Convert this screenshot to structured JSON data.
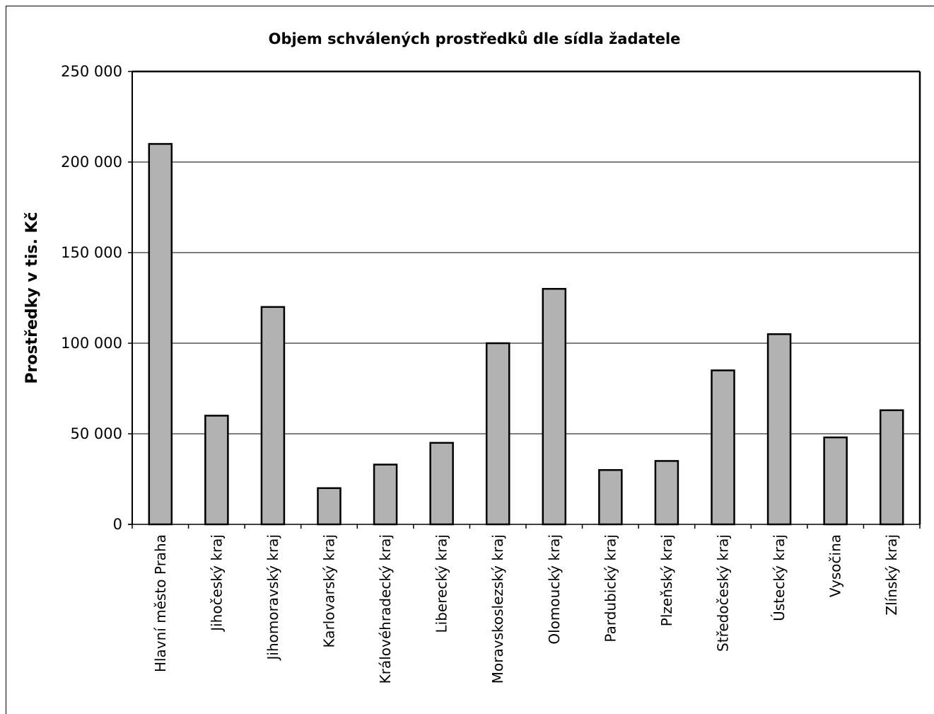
{
  "chart_data": {
    "type": "bar",
    "title": "Objem schválených prostředků dle sídla žadatele",
    "xlabel": "",
    "ylabel": "Prostředky v tis. Kč",
    "ylim": [
      0,
      250000
    ],
    "yticks": [
      0,
      50000,
      100000,
      150000,
      200000,
      250000
    ],
    "ytick_labels": [
      "0",
      "50 000",
      "100 000",
      "150 000",
      "200 000",
      "250 000"
    ],
    "grid": true,
    "legend": "none",
    "bar_color": "#b2b2b2",
    "categories": [
      "Hlavní město Praha",
      "Jihočeský kraj",
      "Jihomoravský kraj",
      "Karlovarský kraj",
      "Královéhradecký kraj",
      "Liberecký kraj",
      "Moravskoslezský kraj",
      "Olomoucký kraj",
      "Pardubický kraj",
      "Plzeňský kraj",
      "Středočeský kraj",
      "Ústecký kraj",
      "Vysočina",
      "Zlínský kraj"
    ],
    "values": [
      210000,
      60000,
      120000,
      20000,
      33000,
      45000,
      100000,
      130000,
      30000,
      35000,
      85000,
      105000,
      48000,
      63000
    ]
  }
}
